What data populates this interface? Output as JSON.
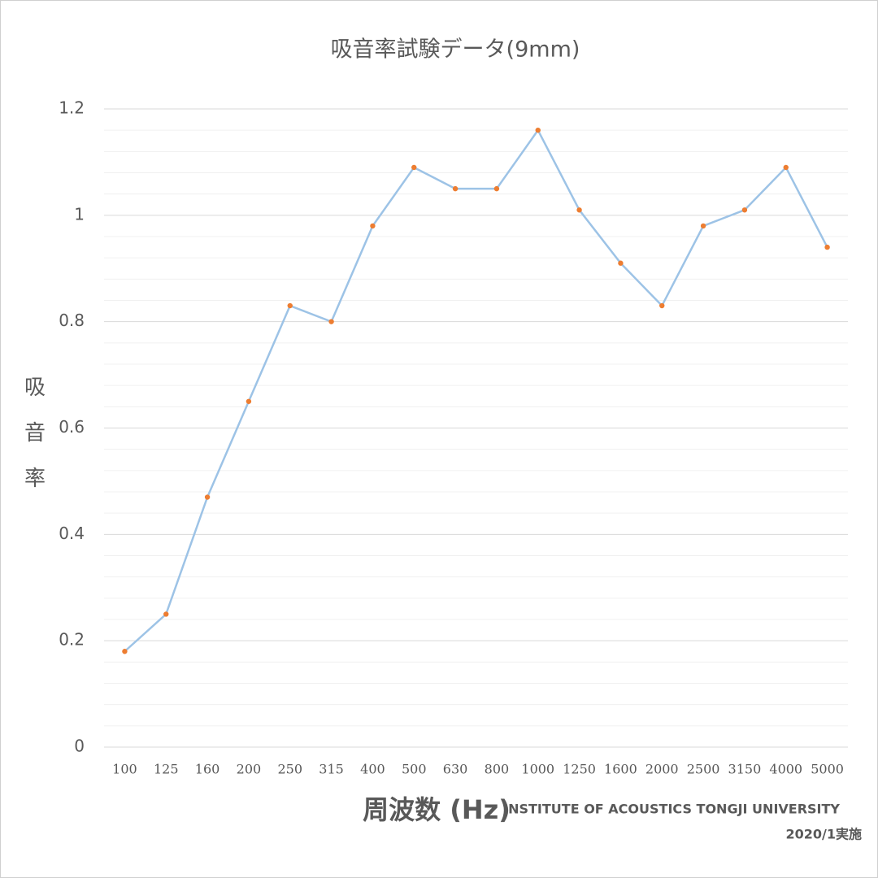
{
  "chart_data": {
    "type": "line",
    "title": "吸音率試験データ(9mm)",
    "x_label": "周波数 (Hz)",
    "y_label": "吸音率",
    "annotations": [
      "INSTITUTE OF ACOUSTICS TONGJI UNIVERSITY",
      "2020/1実施"
    ],
    "categories": [
      "100",
      "125",
      "160",
      "200",
      "250",
      "315",
      "400",
      "500",
      "630",
      "800",
      "1000",
      "1250",
      "1600",
      "2000",
      "2500",
      "3150",
      "4000",
      "5000"
    ],
    "series": [
      {
        "name": "吸音率",
        "color": "#9dc3e6",
        "marker_color": "#ed7d31",
        "values": [
          0.18,
          0.25,
          0.47,
          0.65,
          0.83,
          0.8,
          0.98,
          1.09,
          1.05,
          1.05,
          1.16,
          1.01,
          0.91,
          0.83,
          0.98,
          1.01,
          1.09,
          0.94
        ]
      }
    ],
    "ylim": [
      0,
      1.2
    ],
    "yticks": [
      0,
      0.2,
      0.4,
      0.6,
      0.8,
      1,
      1.2
    ],
    "minor_yticks": [
      0.04,
      0.08,
      0.12,
      0.16,
      0.24,
      0.28,
      0.32,
      0.36,
      0.44,
      0.48,
      0.52,
      0.56,
      0.64,
      0.68,
      0.72,
      0.76,
      0.84,
      0.88,
      0.92,
      0.96,
      1.04,
      1.08,
      1.12,
      1.16
    ],
    "grid": true
  }
}
